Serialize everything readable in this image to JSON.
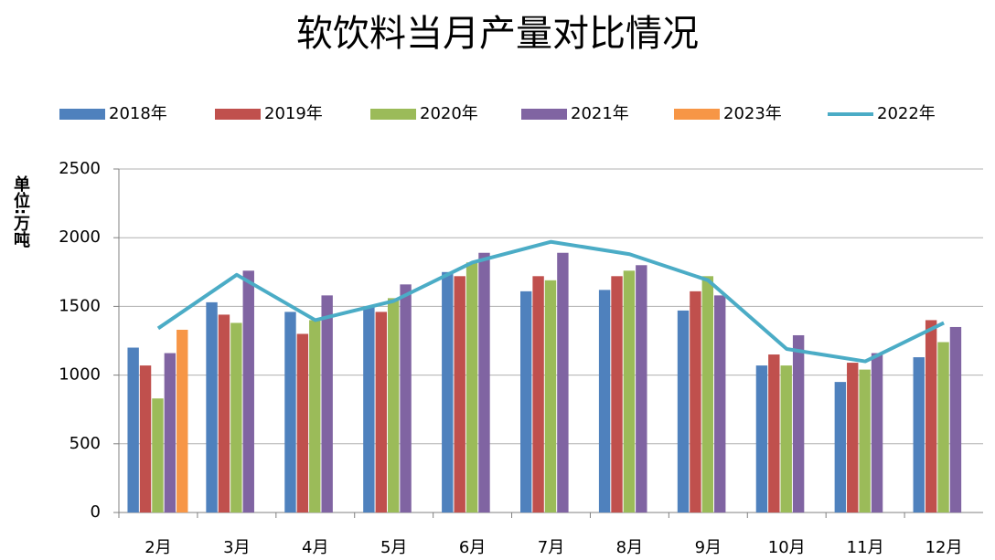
{
  "chart_data": {
    "type": "bar",
    "title": "软饮料当月产量对比情况",
    "y_label": "单位:万吨",
    "categories": [
      "2月",
      "3月",
      "4月",
      "5月",
      "6月",
      "7月",
      "8月",
      "9月",
      "10月",
      "11月",
      "12月"
    ],
    "series": [
      {
        "name": "2018年",
        "color": "#4f81bd",
        "values": [
          1200,
          1530,
          1460,
          1500,
          1750,
          1610,
          1620,
          1470,
          1070,
          950,
          1130
        ]
      },
      {
        "name": "2019年",
        "color": "#c0504d",
        "values": [
          1070,
          1440,
          1300,
          1460,
          1720,
          1720,
          1720,
          1610,
          1150,
          1090,
          1400
        ]
      },
      {
        "name": "2020年",
        "color": "#9bbb59",
        "values": [
          830,
          1380,
          1400,
          1560,
          1820,
          1690,
          1760,
          1720,
          1070,
          1040,
          1240
        ]
      },
      {
        "name": "2021年",
        "color": "#8064a2",
        "values": [
          1160,
          1760,
          1580,
          1660,
          1890,
          1890,
          1800,
          1580,
          1290,
          1160,
          1350
        ]
      },
      {
        "name": "2023年",
        "color": "#f79646",
        "values": [
          1330,
          null,
          null,
          null,
          null,
          null,
          null,
          null,
          null,
          null,
          null
        ]
      },
      {
        "name": "2022年",
        "color": "#4bacc6",
        "type": "line",
        "values": [
          1340,
          1730,
          1400,
          1540,
          1820,
          1970,
          1880,
          1690,
          1190,
          1100,
          1380
        ]
      }
    ],
    "ylim": [
      0,
      2500
    ],
    "yticks": [
      0,
      500,
      1000,
      1500,
      2000,
      2500
    ],
    "grid": true
  }
}
